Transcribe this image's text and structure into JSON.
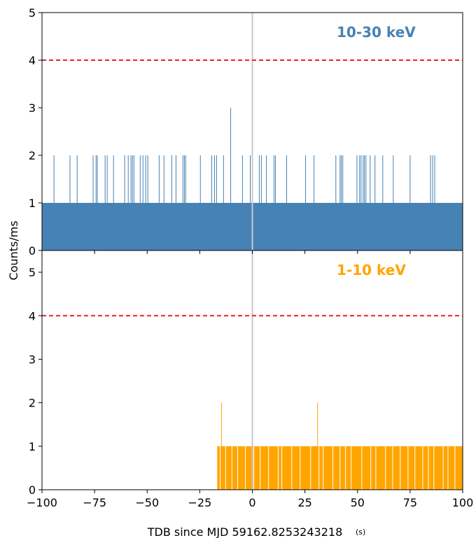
{
  "chart_data": {
    "type": "bar",
    "shared_x": {
      "label": "TDB since MJD 59162.8253243218",
      "unit": "(s)",
      "xlim": [
        -100,
        100
      ],
      "ticks": [
        -100,
        -75,
        -50,
        -25,
        0,
        25,
        50,
        75,
        100
      ],
      "tick_labels": [
        "−100",
        "−75",
        "−50",
        "−25",
        "0",
        "25",
        "50",
        "75",
        "100"
      ]
    },
    "shared_y_label": "Counts/ms",
    "vertical_marker_x": 0,
    "panels": [
      {
        "id": "top",
        "annotation": "10-30 keV",
        "color": "#4682b4",
        "ylim": [
          0,
          5
        ],
        "yticks": [
          0,
          1,
          2,
          3,
          4,
          5
        ],
        "threshold": 4,
        "threshold_color": "#ee2222",
        "baseline_count": 1,
        "baseline_x_range": [
          -100,
          100
        ],
        "peaks": [
          {
            "x": -94.3,
            "v": 2
          },
          {
            "x": -86.7,
            "v": 2
          },
          {
            "x": -83.3,
            "v": 2
          },
          {
            "x": -75.7,
            "v": 2
          },
          {
            "x": -74.3,
            "v": 2
          },
          {
            "x": -73.7,
            "v": 2
          },
          {
            "x": -70.0,
            "v": 2
          },
          {
            "x": -69.0,
            "v": 2
          },
          {
            "x": -66.0,
            "v": 2
          },
          {
            "x": -60.7,
            "v": 2
          },
          {
            "x": -59.0,
            "v": 2
          },
          {
            "x": -57.7,
            "v": 2
          },
          {
            "x": -57.0,
            "v": 2
          },
          {
            "x": -56.3,
            "v": 2
          },
          {
            "x": -53.3,
            "v": 2
          },
          {
            "x": -52.0,
            "v": 2
          },
          {
            "x": -50.7,
            "v": 2
          },
          {
            "x": -49.7,
            "v": 2
          },
          {
            "x": -44.3,
            "v": 2
          },
          {
            "x": -42.0,
            "v": 2
          },
          {
            "x": -38.3,
            "v": 2
          },
          {
            "x": -36.3,
            "v": 2
          },
          {
            "x": -33.0,
            "v": 2
          },
          {
            "x": -32.3,
            "v": 2
          },
          {
            "x": -31.7,
            "v": 2
          },
          {
            "x": -24.7,
            "v": 2
          },
          {
            "x": -19.3,
            "v": 2
          },
          {
            "x": -18.0,
            "v": 2
          },
          {
            "x": -17.0,
            "v": 2
          },
          {
            "x": -13.7,
            "v": 2
          },
          {
            "x": -10.3,
            "v": 3
          },
          {
            "x": -4.7,
            "v": 2
          },
          {
            "x": -1.0,
            "v": 2
          },
          {
            "x": 3.3,
            "v": 2
          },
          {
            "x": 4.3,
            "v": 2
          },
          {
            "x": 6.7,
            "v": 2
          },
          {
            "x": 10.3,
            "v": 2
          },
          {
            "x": 11.0,
            "v": 2
          },
          {
            "x": 16.3,
            "v": 2
          },
          {
            "x": 25.3,
            "v": 2
          },
          {
            "x": 29.3,
            "v": 2
          },
          {
            "x": 39.7,
            "v": 2
          },
          {
            "x": 41.7,
            "v": 2
          },
          {
            "x": 42.3,
            "v": 2
          },
          {
            "x": 43.0,
            "v": 2
          },
          {
            "x": 49.7,
            "v": 2
          },
          {
            "x": 51.0,
            "v": 2
          },
          {
            "x": 51.7,
            "v": 2
          },
          {
            "x": 52.7,
            "v": 2
          },
          {
            "x": 53.3,
            "v": 2
          },
          {
            "x": 54.0,
            "v": 2
          },
          {
            "x": 56.0,
            "v": 2
          },
          {
            "x": 58.3,
            "v": 2
          },
          {
            "x": 62.0,
            "v": 2
          },
          {
            "x": 67.0,
            "v": 2
          },
          {
            "x": 75.0,
            "v": 2
          },
          {
            "x": 84.7,
            "v": 2
          },
          {
            "x": 85.7,
            "v": 2
          },
          {
            "x": 86.7,
            "v": 2
          }
        ]
      },
      {
        "id": "bottom",
        "annotation": "1-10 keV",
        "color": "#ffa500",
        "ylim": [
          0,
          5.5
        ],
        "yticks": [
          0,
          1,
          2,
          3,
          4,
          5
        ],
        "threshold": 4,
        "threshold_color": "#ee2222",
        "baseline_count": 1,
        "baseline_x_range": [
          -16.7,
          100
        ],
        "gaps": [
          -15.3,
          -12.7,
          -9.7,
          -7.0,
          -3.3,
          0.7,
          3.7,
          7.7,
          12.3,
          14.0,
          18.7,
          22.7,
          27.7,
          31.7,
          33.7,
          38.3,
          41.7,
          44.3,
          47.0,
          52.0,
          56.3,
          58.7,
          63.3,
          66.7,
          70.3,
          74.0,
          77.3,
          81.0,
          83.7,
          86.3,
          90.7,
          93.0,
          96.3
        ],
        "peaks": [
          {
            "x": -14.7,
            "v": 2
          },
          {
            "x": 31.0,
            "v": 2
          }
        ]
      }
    ]
  }
}
